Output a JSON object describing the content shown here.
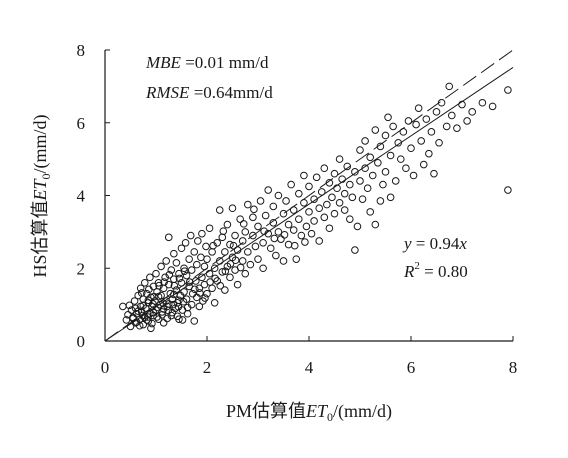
{
  "chart_data": {
    "type": "scatter",
    "xlabel": {
      "prefix": "PM估算值",
      "var": "ET",
      "sub": "0",
      "suffix": "/(mm/d)"
    },
    "ylabel": {
      "prefix": "HS估算值",
      "var": "ET",
      "sub": "0",
      "suffix": "/(mm/d)"
    },
    "xlim": [
      0,
      8
    ],
    "ylim": [
      0,
      8
    ],
    "xticks": [
      "0",
      "2",
      "4",
      "6",
      "8"
    ],
    "yticks": [
      "0",
      "2",
      "4",
      "6",
      "8"
    ],
    "grid": false,
    "annotations": {
      "mbe": {
        "var": "MBE",
        "text": " =0.01 mm/d"
      },
      "rmse": {
        "var": "RMSE",
        "text": " =0.64mm/d"
      },
      "equation": {
        "lhs": "y",
        "mid": " = 0.94",
        "rhs": "x"
      },
      "r2": {
        "var": "R",
        "sup": "2",
        "text": " = 0.80"
      }
    },
    "lines": [
      {
        "kind": "1:1 reference",
        "style": "dashed",
        "slope": 1.0
      },
      {
        "kind": "regression",
        "style": "solid",
        "slope": 0.94
      }
    ],
    "points": [
      [
        0.35,
        0.95
      ],
      [
        0.42,
        0.58
      ],
      [
        0.45,
        0.72
      ],
      [
        0.48,
        0.98
      ],
      [
        0.5,
        0.4
      ],
      [
        0.52,
        0.85
      ],
      [
        0.55,
        0.65
      ],
      [
        0.58,
        1.1
      ],
      [
        0.6,
        0.5
      ],
      [
        0.6,
        0.9
      ],
      [
        0.62,
        0.75
      ],
      [
        0.65,
        1.25
      ],
      [
        0.68,
        0.6
      ],
      [
        0.7,
        0.95
      ],
      [
        0.7,
        1.45
      ],
      [
        0.72,
        0.8
      ],
      [
        0.75,
        0.45
      ],
      [
        0.75,
        1.15
      ],
      [
        0.78,
        0.65
      ],
      [
        0.78,
        1.6
      ],
      [
        0.8,
        0.9
      ],
      [
        0.82,
        1.3
      ],
      [
        0.85,
        0.55
      ],
      [
        0.85,
        1.05
      ],
      [
        0.88,
        0.75
      ],
      [
        0.88,
        1.75
      ],
      [
        0.9,
        1.2
      ],
      [
        0.9,
        0.35
      ],
      [
        0.92,
        0.95
      ],
      [
        0.95,
        1.5
      ],
      [
        0.95,
        0.7
      ],
      [
        0.98,
        1.1
      ],
      [
        1.0,
        0.85
      ],
      [
        1.0,
        1.85
      ],
      [
        1.02,
        1.35
      ],
      [
        1.05,
        0.6
      ],
      [
        1.05,
        1.6
      ],
      [
        1.08,
        1.0
      ],
      [
        1.1,
        2.05
      ],
      [
        1.1,
        1.25
      ],
      [
        1.12,
        0.8
      ],
      [
        1.15,
        1.45
      ],
      [
        1.15,
        0.5
      ],
      [
        1.18,
        1.75
      ],
      [
        1.2,
        1.1
      ],
      [
        1.2,
        2.2
      ],
      [
        1.22,
        0.95
      ],
      [
        1.25,
        1.55
      ],
      [
        1.25,
        2.85
      ],
      [
        1.28,
        1.3
      ],
      [
        1.3,
        0.7
      ],
      [
        1.3,
        1.95
      ],
      [
        1.32,
        1.15
      ],
      [
        1.35,
        1.7
      ],
      [
        1.35,
        2.4
      ],
      [
        1.38,
        0.9
      ],
      [
        1.4,
        1.4
      ],
      [
        1.4,
        2.15
      ],
      [
        1.42,
        1.05
      ],
      [
        1.45,
        1.85
      ],
      [
        1.45,
        0.6
      ],
      [
        1.48,
        1.25
      ],
      [
        1.5,
        2.55
      ],
      [
        1.5,
        1.6
      ],
      [
        1.52,
        0.85
      ],
      [
        1.55,
        2.0
      ],
      [
        1.55,
        1.35
      ],
      [
        1.58,
        2.7
      ],
      [
        1.6,
        1.15
      ],
      [
        1.6,
        1.8
      ],
      [
        1.62,
        0.75
      ],
      [
        1.65,
        2.25
      ],
      [
        1.65,
        1.5
      ],
      [
        1.68,
        2.9
      ],
      [
        1.7,
        1.0
      ],
      [
        1.7,
        1.95
      ],
      [
        1.72,
        1.3
      ],
      [
        1.75,
        2.45
      ],
      [
        1.75,
        0.55
      ],
      [
        1.78,
        1.65
      ],
      [
        1.8,
        2.1
      ],
      [
        1.8,
        1.2
      ],
      [
        1.82,
        2.75
      ],
      [
        1.85,
        1.45
      ],
      [
        1.85,
        0.95
      ],
      [
        1.88,
        2.3
      ],
      [
        1.9,
        1.75
      ],
      [
        1.9,
        2.95
      ],
      [
        1.92,
        1.1
      ],
      [
        1.95,
        2.05
      ],
      [
        1.95,
        1.55
      ],
      [
        1.98,
        2.6
      ],
      [
        2.0,
        1.3
      ],
      [
        2.0,
        2.25
      ],
      [
        2.05,
        1.85
      ],
      [
        2.05,
        3.1
      ],
      [
        2.1,
        1.45
      ],
      [
        2.1,
        2.45
      ],
      [
        2.15,
        2.0
      ],
      [
        2.15,
        1.05
      ],
      [
        2.2,
        2.7
      ],
      [
        2.2,
        1.65
      ],
      [
        2.25,
        2.2
      ],
      [
        2.25,
        3.6
      ],
      [
        2.3,
        1.9
      ],
      [
        2.3,
        2.85
      ],
      [
        2.35,
        1.4
      ],
      [
        2.35,
        2.45
      ],
      [
        2.4,
        3.2
      ],
      [
        2.4,
        2.05
      ],
      [
        2.45,
        1.75
      ],
      [
        2.45,
        2.65
      ],
      [
        2.5,
        2.3
      ],
      [
        2.5,
        3.65
      ],
      [
        2.55,
        1.95
      ],
      [
        2.55,
        2.9
      ],
      [
        2.6,
        2.5
      ],
      [
        2.6,
        1.55
      ],
      [
        2.65,
        3.35
      ],
      [
        2.7,
        2.2
      ],
      [
        2.7,
        2.75
      ],
      [
        2.75,
        3.0
      ],
      [
        2.75,
        1.85
      ],
      [
        2.8,
        2.45
      ],
      [
        2.8,
        3.75
      ],
      [
        2.85,
        2.1
      ],
      [
        2.9,
        2.9
      ],
      [
        2.9,
        3.4
      ],
      [
        2.95,
        2.6
      ],
      [
        3.0,
        2.25
      ],
      [
        3.0,
        3.15
      ],
      [
        3.05,
        3.85
      ],
      [
        3.1,
        2.7
      ],
      [
        3.1,
        2.0
      ],
      [
        3.15,
        3.45
      ],
      [
        3.2,
        2.95
      ],
      [
        3.2,
        4.15
      ],
      [
        3.25,
        2.55
      ],
      [
        3.3,
        3.25
      ],
      [
        3.3,
        3.7
      ],
      [
        3.35,
        2.35
      ],
      [
        3.4,
        3.0
      ],
      [
        3.4,
        4.0
      ],
      [
        3.45,
        2.8
      ],
      [
        3.5,
        3.5
      ],
      [
        3.5,
        2.2
      ],
      [
        3.55,
        3.85
      ],
      [
        3.6,
        3.2
      ],
      [
        3.6,
        2.65
      ],
      [
        3.65,
        4.3
      ],
      [
        3.7,
        3.05
      ],
      [
        3.7,
        3.6
      ],
      [
        3.75,
        2.25
      ],
      [
        3.8,
        4.05
      ],
      [
        3.8,
        3.35
      ],
      [
        3.85,
        2.9
      ],
      [
        3.9,
        3.8
      ],
      [
        3.9,
        4.55
      ],
      [
        3.95,
        3.15
      ],
      [
        4.0,
        3.55
      ],
      [
        4.0,
        4.25
      ],
      [
        4.05,
        2.95
      ],
      [
        4.1,
        3.9
      ],
      [
        4.1,
        3.3
      ],
      [
        4.15,
        4.5
      ],
      [
        4.2,
        3.65
      ],
      [
        4.2,
        2.75
      ],
      [
        4.25,
        4.1
      ],
      [
        4.3,
        3.4
      ],
      [
        4.3,
        4.75
      ],
      [
        4.35,
        3.75
      ],
      [
        4.4,
        4.35
      ],
      [
        4.4,
        3.1
      ],
      [
        4.45,
        3.95
      ],
      [
        4.5,
        4.6
      ],
      [
        4.5,
        3.5
      ],
      [
        4.55,
        4.2
      ],
      [
        4.6,
        3.8
      ],
      [
        4.6,
        5.0
      ],
      [
        4.65,
        4.45
      ],
      [
        4.7,
        3.6
      ],
      [
        4.7,
        4.05
      ],
      [
        4.75,
        4.8
      ],
      [
        4.8,
        3.35
      ],
      [
        4.8,
        4.3
      ],
      [
        4.85,
        3.95
      ],
      [
        4.9,
        4.65
      ],
      [
        4.9,
        2.5
      ],
      [
        4.95,
        3.15
      ],
      [
        5.0,
        4.4
      ],
      [
        5.0,
        5.25
      ],
      [
        5.05,
        3.9
      ],
      [
        5.1,
        4.75
      ],
      [
        5.1,
        5.5
      ],
      [
        5.15,
        4.2
      ],
      [
        5.2,
        5.05
      ],
      [
        5.2,
        3.55
      ],
      [
        5.25,
        4.55
      ],
      [
        5.3,
        5.8
      ],
      [
        5.3,
        3.2
      ],
      [
        5.35,
        4.9
      ],
      [
        5.4,
        5.35
      ],
      [
        5.4,
        3.85
      ],
      [
        5.45,
        4.3
      ],
      [
        5.5,
        5.65
      ],
      [
        5.5,
        4.65
      ],
      [
        5.55,
        6.15
      ],
      [
        5.6,
        5.1
      ],
      [
        5.6,
        3.95
      ],
      [
        5.65,
        5.9
      ],
      [
        5.7,
        4.4
      ],
      [
        5.75,
        5.45
      ],
      [
        5.8,
        5.0
      ],
      [
        5.85,
        5.75
      ],
      [
        5.9,
        4.75
      ],
      [
        5.95,
        6.05
      ],
      [
        6.0,
        5.3
      ],
      [
        6.05,
        4.55
      ],
      [
        6.1,
        5.95
      ],
      [
        6.15,
        6.4
      ],
      [
        6.2,
        5.5
      ],
      [
        6.25,
        4.85
      ],
      [
        6.3,
        6.1
      ],
      [
        6.35,
        5.15
      ],
      [
        6.4,
        5.75
      ],
      [
        6.45,
        4.6
      ],
      [
        6.5,
        6.3
      ],
      [
        6.55,
        5.45
      ],
      [
        6.6,
        6.55
      ],
      [
        6.7,
        5.9
      ],
      [
        6.75,
        7.0
      ],
      [
        6.8,
        6.2
      ],
      [
        6.9,
        5.85
      ],
      [
        7.0,
        6.5
      ],
      [
        7.1,
        6.05
      ],
      [
        7.2,
        6.3
      ],
      [
        7.4,
        6.55
      ],
      [
        7.6,
        6.45
      ],
      [
        7.9,
        6.9
      ],
      [
        7.9,
        4.15
      ],
      [
        0.55,
        0.62
      ],
      [
        0.65,
        0.82
      ],
      [
        0.75,
        0.98
      ],
      [
        0.85,
        1.12
      ],
      [
        0.95,
        0.78
      ],
      [
        1.05,
        1.22
      ],
      [
        1.15,
        0.88
      ],
      [
        1.25,
        1.02
      ],
      [
        1.35,
        1.28
      ],
      [
        1.45,
        1.12
      ],
      [
        0.68,
        0.42
      ],
      [
        0.82,
        0.58
      ],
      [
        0.92,
        0.48
      ],
      [
        1.02,
        0.66
      ],
      [
        1.12,
        0.72
      ],
      [
        1.22,
        0.62
      ],
      [
        1.32,
        0.78
      ],
      [
        1.42,
        0.68
      ],
      [
        1.52,
        0.58
      ],
      [
        1.62,
        0.92
      ],
      [
        0.72,
        1.32
      ],
      [
        0.86,
        1.42
      ],
      [
        0.96,
        1.22
      ],
      [
        1.06,
        1.52
      ],
      [
        1.16,
        1.62
      ],
      [
        1.26,
        1.82
      ],
      [
        1.36,
        1.52
      ],
      [
        1.46,
        1.72
      ],
      [
        1.56,
        1.92
      ],
      [
        1.66,
        1.62
      ],
      [
        1.76,
        1.42
      ],
      [
        1.86,
        1.32
      ],
      [
        1.96,
        1.18
      ],
      [
        2.06,
        1.62
      ],
      [
        2.16,
        1.72
      ],
      [
        2.26,
        1.52
      ],
      [
        2.36,
        1.92
      ],
      [
        2.46,
        2.12
      ],
      [
        2.56,
        2.22
      ],
      [
        2.66,
        2.02
      ],
      [
        0.62,
        0.52
      ],
      [
        0.74,
        0.7
      ],
      [
        0.84,
        0.66
      ],
      [
        0.94,
        1.02
      ],
      [
        1.04,
        0.92
      ],
      [
        1.14,
        1.04
      ],
      [
        1.24,
        0.84
      ],
      [
        1.34,
        1.0
      ],
      [
        1.44,
        0.94
      ],
      [
        1.54,
        1.08
      ],
      [
        2.12,
        2.62
      ],
      [
        2.32,
        3.02
      ],
      [
        2.52,
        2.62
      ],
      [
        2.72,
        3.22
      ],
      [
        2.92,
        3.62
      ],
      [
        3.12,
        3.02
      ],
      [
        3.32,
        2.82
      ],
      [
        3.52,
        2.92
      ],
      [
        3.72,
        2.62
      ],
      [
        3.92,
        2.72
      ]
    ]
  }
}
